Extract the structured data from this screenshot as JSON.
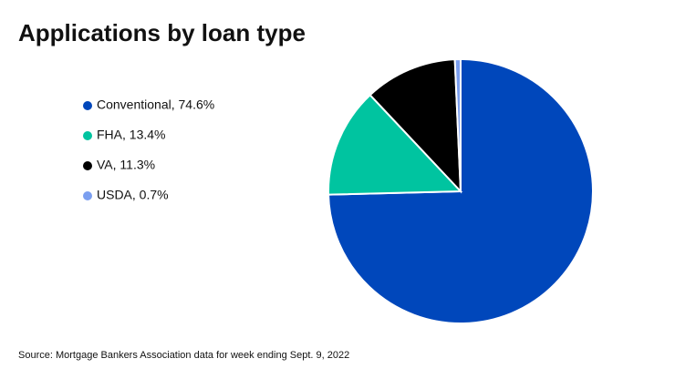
{
  "chart_data": {
    "type": "pie",
    "title": "Applications by loan type",
    "categories": [
      "Conventional, 74.6%",
      "FHA, 13.4%",
      "VA, 11.3%",
      "USDA, 0.7%"
    ],
    "values": [
      74.6,
      13.4,
      11.3,
      0.7
    ],
    "colors": [
      "#0047bb",
      "#00c4a0",
      "#000000",
      "#7b9ff0"
    ],
    "source": "Source: Mortgage Bankers Association data for week ending Sept. 9, 2022"
  }
}
